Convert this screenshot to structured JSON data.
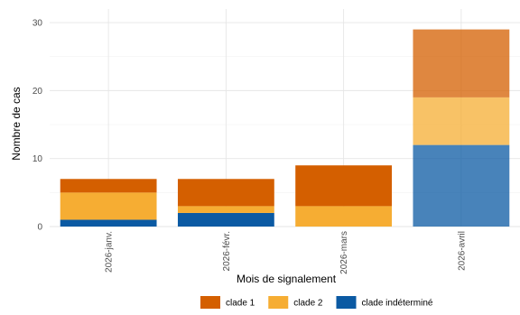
{
  "chart_data": {
    "type": "bar",
    "stacked": true,
    "categories": [
      "2026-janv.",
      "2026-févr.",
      "2026-mars",
      "2026-avril"
    ],
    "series": [
      {
        "name": "clade indéterminé",
        "values": [
          1,
          2,
          0,
          12
        ],
        "color": "#0b5aa3"
      },
      {
        "name": "clade 2",
        "values": [
          4,
          1,
          3,
          7
        ],
        "color": "#f6ad33"
      },
      {
        "name": "clade 1",
        "values": [
          2,
          4,
          6,
          10
        ],
        "color": "#d45f00"
      }
    ],
    "highlight": {
      "category_index": 3,
      "opacity": 0.75
    },
    "xlabel": "Mois de signalement",
    "ylabel": "Nombre de cas",
    "ylim": [
      0,
      32
    ],
    "yticks": [
      0,
      10,
      20,
      30
    ],
    "grid": true,
    "legend": {
      "position": "bottom",
      "entries": [
        {
          "label": "clade 1",
          "color": "#d45f00"
        },
        {
          "label": "clade 2",
          "color": "#f6ad33"
        },
        {
          "label": "clade indéterminé",
          "color": "#0b5aa3"
        }
      ]
    }
  }
}
